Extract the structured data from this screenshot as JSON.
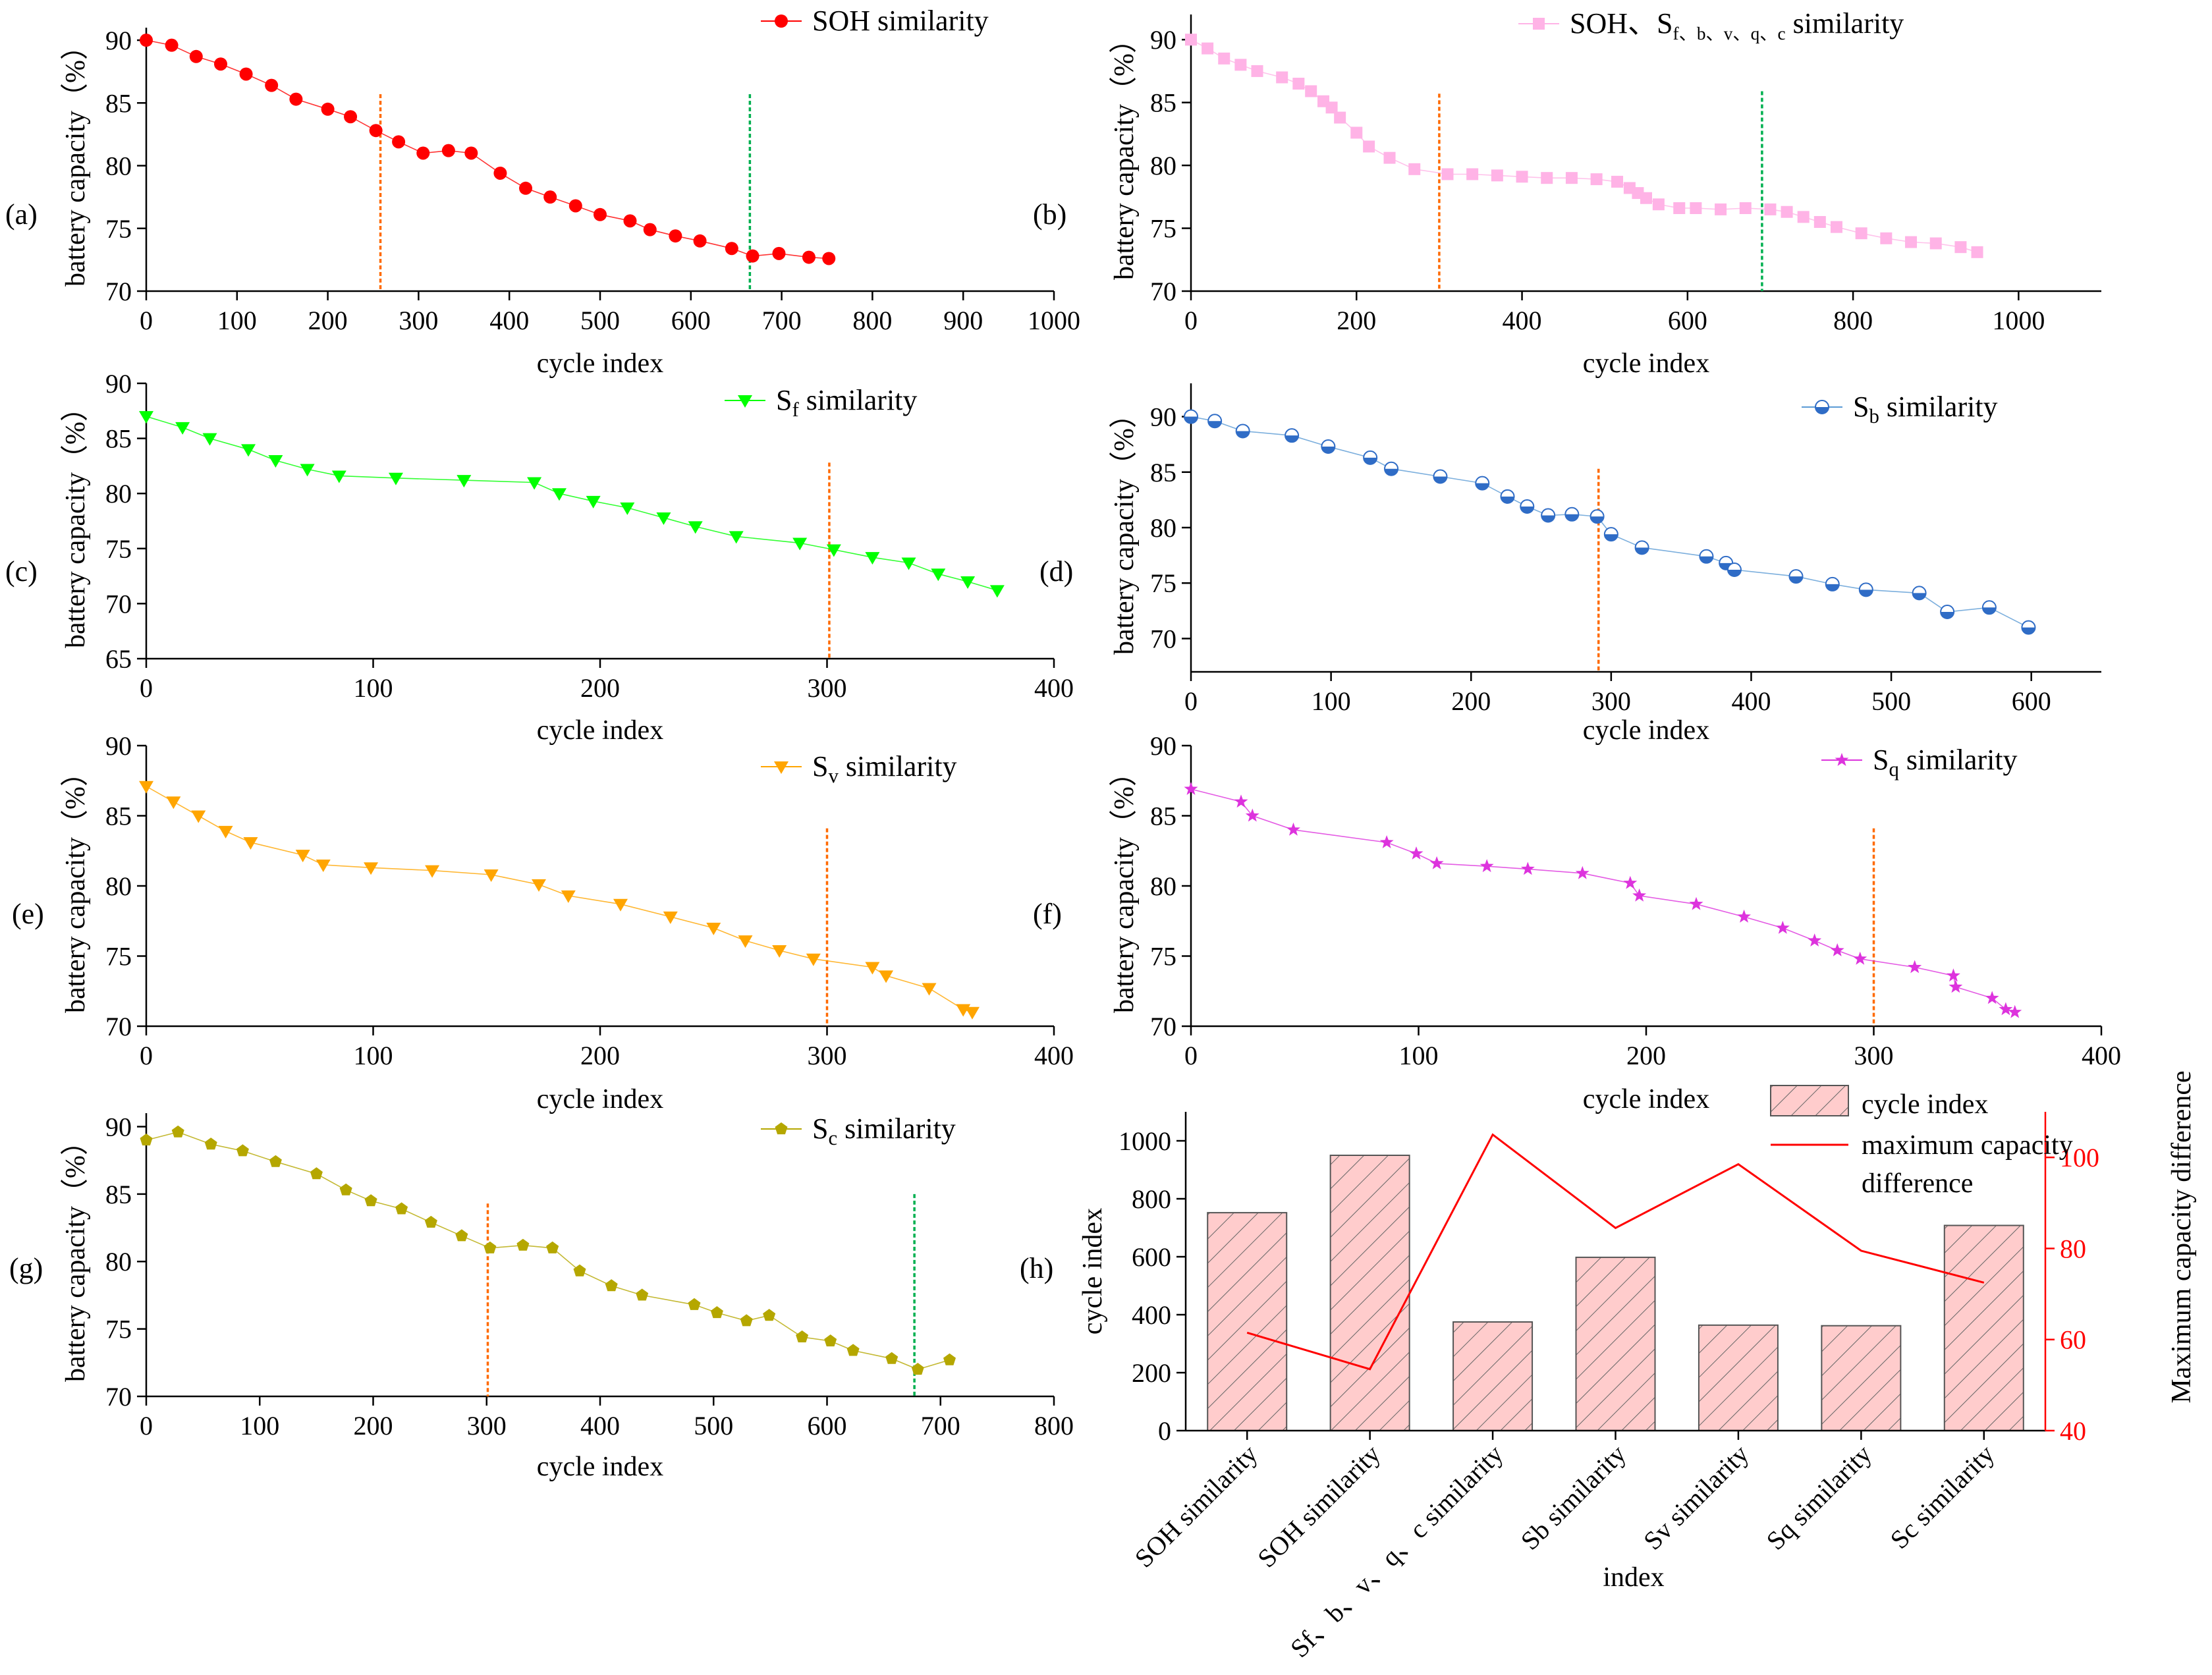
{
  "figure": {
    "panel_labels": [
      "(a)",
      "(b)",
      "(c)",
      "(d)",
      "(e)",
      "(f)",
      "(g)",
      "(h)"
    ]
  },
  "chart_data": [
    {
      "id": "a",
      "type": "line",
      "color": "#ff0000",
      "marker": "circle",
      "legend": "SOH similarity",
      "xlabel": "cycle index",
      "ylabel": "battery capacity（%）",
      "xlim": [
        0,
        1000
      ],
      "ylim": [
        70,
        91
      ],
      "xticks": [
        0,
        100,
        200,
        300,
        400,
        500,
        600,
        700,
        800,
        900,
        1000
      ],
      "yticks": [
        70,
        75,
        80,
        85,
        90
      ],
      "vlines": [
        {
          "x": 258,
          "color": "#ff6a00",
          "y_top": 85.7
        },
        {
          "x": 665,
          "color": "#00b050",
          "y_top": 85.7
        }
      ],
      "x": [
        0,
        28,
        55,
        82,
        110,
        138,
        165,
        200,
        225,
        253,
        278,
        305,
        333,
        358,
        390,
        418,
        445,
        473,
        500,
        533,
        555,
        583,
        610,
        645,
        668,
        697,
        730,
        752
      ],
      "y": [
        90.0,
        89.6,
        88.7,
        88.1,
        87.3,
        86.4,
        85.3,
        84.5,
        83.9,
        82.8,
        81.9,
        81.0,
        81.2,
        81.0,
        79.4,
        78.2,
        77.5,
        76.8,
        76.1,
        75.6,
        74.9,
        74.4,
        74.0,
        73.4,
        72.8,
        73.0,
        72.7,
        72.6
      ]
    },
    {
      "id": "b",
      "type": "line",
      "color": "#ffb3e6",
      "marker": "square",
      "legend": "SOH、Sf、b、v、q、c similarity",
      "xlabel": "cycle index",
      "ylabel": "battery capacity（%）",
      "xlim": [
        0,
        1100
      ],
      "ylim": [
        70,
        92
      ],
      "xticks": [
        0,
        200,
        400,
        600,
        800,
        1000
      ],
      "yticks": [
        70,
        75,
        80,
        85,
        90
      ],
      "vlines": [
        {
          "x": 300,
          "color": "#ff6a00",
          "y_top": 85.7
        },
        {
          "x": 690,
          "color": "#00b050",
          "y_top": 85.9
        }
      ],
      "x": [
        0,
        20,
        40,
        60,
        80,
        110,
        130,
        145,
        160,
        170,
        180,
        200,
        215,
        240,
        270,
        310,
        340,
        370,
        400,
        430,
        460,
        490,
        515,
        530,
        540,
        550,
        565,
        590,
        610,
        640,
        670,
        700,
        720,
        740,
        760,
        780,
        810,
        840,
        870,
        900,
        930,
        950
      ],
      "y": [
        90.0,
        89.3,
        88.5,
        88.0,
        87.5,
        87.0,
        86.5,
        85.9,
        85.1,
        84.6,
        83.8,
        82.6,
        81.5,
        80.6,
        79.7,
        79.3,
        79.3,
        79.2,
        79.1,
        79.0,
        79.0,
        78.9,
        78.7,
        78.2,
        77.8,
        77.4,
        76.9,
        76.6,
        76.6,
        76.5,
        76.6,
        76.5,
        76.3,
        75.9,
        75.5,
        75.1,
        74.6,
        74.2,
        73.9,
        73.8,
        73.5,
        73.1
      ]
    },
    {
      "id": "c",
      "type": "line",
      "color": "#00ff00",
      "marker": "triangle-down",
      "legend": "Sf similarity",
      "xlabel": "cycle index",
      "ylabel": "battery capacity（%）",
      "xlim": [
        0,
        400
      ],
      "ylim": [
        65,
        90
      ],
      "xticks": [
        0,
        100,
        200,
        300,
        400
      ],
      "yticks": [
        65,
        70,
        75,
        80,
        85,
        90
      ],
      "vlines": [
        {
          "x": 301,
          "color": "#ff6a00",
          "y_top": 82.8
        }
      ],
      "x": [
        0,
        16,
        28,
        45,
        57,
        71,
        85,
        110,
        140,
        171,
        182,
        197,
        212,
        228,
        242,
        260,
        288,
        303,
        320,
        336,
        349,
        362,
        375
      ],
      "y": [
        87.0,
        86.0,
        85.0,
        84.0,
        83.0,
        82.2,
        81.6,
        81.4,
        81.2,
        81.0,
        80.0,
        79.3,
        78.7,
        77.8,
        77.0,
        76.1,
        75.5,
        74.9,
        74.2,
        73.7,
        72.7,
        72.0,
        71.2
      ]
    },
    {
      "id": "d",
      "type": "line",
      "color": "#5b9bd5",
      "marker": "half-circle",
      "legend": "Sb similarity",
      "xlabel": "cycle index",
      "ylabel": "battery capacity（%）",
      "xlim": [
        0,
        650
      ],
      "ylim": [
        67,
        93
      ],
      "xticks": [
        0,
        100,
        200,
        300,
        400,
        500,
        600
      ],
      "yticks": [
        70,
        75,
        80,
        85,
        90
      ],
      "vlines": [
        {
          "x": 291,
          "color": "#ff6a00",
          "y_top": 85.3
        }
      ],
      "x": [
        0,
        17,
        37,
        72,
        98,
        128,
        143,
        178,
        208,
        226,
        240,
        255,
        272,
        290,
        300,
        322,
        368,
        382,
        388,
        432,
        458,
        482,
        520,
        540,
        570,
        598
      ],
      "y": [
        90.0,
        89.6,
        88.7,
        88.3,
        87.3,
        86.3,
        85.3,
        84.6,
        84.0,
        82.8,
        81.9,
        81.1,
        81.2,
        81.0,
        79.4,
        78.2,
        77.4,
        76.8,
        76.2,
        75.6,
        74.9,
        74.4,
        74.1,
        72.4,
        72.8,
        71.0
      ]
    },
    {
      "id": "e",
      "type": "line",
      "color": "#ffa500",
      "marker": "triangle-down",
      "legend": "Sv similarity",
      "xlabel": "cycle index",
      "ylabel": "battery capacity（%）",
      "xlim": [
        0,
        400
      ],
      "ylim": [
        70,
        90
      ],
      "xticks": [
        0,
        100,
        200,
        300,
        400
      ],
      "yticks": [
        70,
        75,
        80,
        85,
        90
      ],
      "vlines": [
        {
          "x": 300,
          "color": "#ff6a00",
          "y_top": 84.1
        }
      ],
      "x": [
        0,
        12,
        23,
        35,
        46,
        69,
        78,
        99,
        126,
        152,
        173,
        186,
        209,
        231,
        250,
        264,
        279,
        294,
        320,
        326,
        345,
        360,
        364
      ],
      "y": [
        87.1,
        86.0,
        85.0,
        83.9,
        83.1,
        82.2,
        81.5,
        81.3,
        81.1,
        80.8,
        80.1,
        79.3,
        78.7,
        77.8,
        77.0,
        76.1,
        75.4,
        74.8,
        74.2,
        73.6,
        72.7,
        71.2,
        71.0
      ]
    },
    {
      "id": "f",
      "type": "line",
      "color": "#dd33dd",
      "marker": "star",
      "legend": "Sq similarity",
      "xlabel": "cycle index",
      "ylabel": "battery capacity（%）",
      "xlim": [
        0,
        400
      ],
      "ylim": [
        70,
        90
      ],
      "xticks": [
        0,
        100,
        200,
        300,
        400
      ],
      "yticks": [
        70,
        75,
        80,
        85,
        90
      ],
      "vlines": [
        {
          "x": 300,
          "color": "#ff6a00",
          "y_top": 84.1
        }
      ],
      "x": [
        0,
        22,
        27,
        45,
        86,
        99,
        108,
        130,
        148,
        172,
        193,
        197,
        222,
        243,
        260,
        274,
        284,
        294,
        318,
        335,
        336,
        352,
        358,
        362
      ],
      "y": [
        86.9,
        86.0,
        85.0,
        84.0,
        83.1,
        82.3,
        81.6,
        81.4,
        81.2,
        80.9,
        80.2,
        79.3,
        78.7,
        77.8,
        77.0,
        76.1,
        75.4,
        74.8,
        74.2,
        73.6,
        72.8,
        72.0,
        71.2,
        71.0
      ]
    },
    {
      "id": "g",
      "type": "line",
      "color": "#b5a700",
      "marker": "pentagon",
      "legend": "Sc similarity",
      "xlabel": "cycle index",
      "ylabel": "battery capacity（%）",
      "xlim": [
        0,
        800
      ],
      "ylim": [
        70,
        91
      ],
      "xticks": [
        0,
        100,
        200,
        300,
        400,
        500,
        600,
        700,
        800
      ],
      "yticks": [
        70,
        75,
        80,
        85,
        90
      ],
      "vlines": [
        {
          "x": 301,
          "color": "#ff6a00",
          "y_top": 84.3
        },
        {
          "x": 677,
          "color": "#00b050",
          "y_top": 85.0
        }
      ],
      "x": [
        0,
        28,
        57,
        85,
        114,
        150,
        176,
        198,
        225,
        251,
        278,
        303,
        332,
        358,
        382,
        410,
        437,
        483,
        503,
        529,
        549,
        578,
        603,
        623,
        657,
        680,
        708
      ],
      "y": [
        89.0,
        89.6,
        88.7,
        88.2,
        87.4,
        86.5,
        85.3,
        84.5,
        83.9,
        82.9,
        81.9,
        81.0,
        81.2,
        81.0,
        79.3,
        78.2,
        77.5,
        76.8,
        76.2,
        75.6,
        76.0,
        74.4,
        74.1,
        73.4,
        72.8,
        72.0,
        72.7
      ]
    },
    {
      "id": "h",
      "type": "bar",
      "categories": [
        "SOH similarity",
        "SOH similarity",
        "Sf、b、v、q、c similarity",
        "Sb similarity",
        "Sv similarity",
        "Sq similarity",
        "Sc similarity"
      ],
      "bar_values": [
        752,
        950,
        375,
        598,
        364,
        362,
        708
      ],
      "line_values": [
        61.5,
        53.5,
        105.0,
        84.5,
        98.5,
        79.5,
        72.5
      ],
      "bar_legend": "cycle index",
      "line_legend": [
        "maximum capacity",
        "difference"
      ],
      "xlabel": "index",
      "ylabel": "cycle index",
      "ylabel_right": "Maximum capacity difference",
      "ylim": [
        0,
        1100
      ],
      "ylim_right": [
        40,
        110
      ],
      "yticks": [
        0,
        200,
        400,
        600,
        800,
        1000
      ],
      "yticks_right": [
        40,
        60,
        80,
        100
      ],
      "bar_color": "#ffcccc",
      "line_color": "#ff0000"
    }
  ]
}
